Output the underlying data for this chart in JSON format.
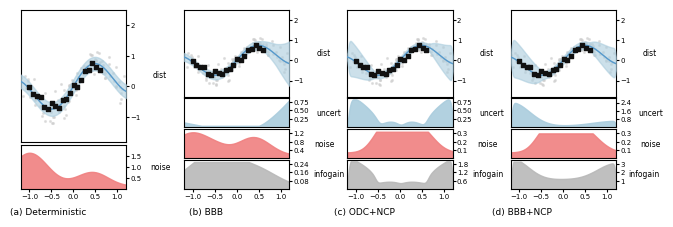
{
  "titles": [
    "(a) Deterministic",
    "(b) BBB",
    "(c) ODC+NCP",
    "(d) BBB+NCP"
  ],
  "xlim": [
    -1.2,
    1.2
  ],
  "dist_ylim": [
    -1.8,
    2.5
  ],
  "dist_yticks": [
    -1,
    0,
    1,
    2
  ],
  "blue_fill": "#aaccdd",
  "red_fill": "#f08080",
  "gray_fill": "#b8b8b8",
  "line_color": "#5599cc",
  "scatter_dark": "#111111",
  "scatter_light": "#cccccc",
  "ylabel_dist": "dist",
  "ylabel_uncert": "uncert",
  "ylabel_noise": "noise",
  "ylabel_infogain": "infogain",
  "uncert_ylim": [
    0,
    0.85
  ],
  "uncert_yticks": [
    0.25,
    0.5,
    0.75
  ],
  "noise_ylim_det": [
    0,
    2.0
  ],
  "noise_yticks_det": [
    0.5,
    1.0,
    1.5
  ],
  "noise_ylim_bbb": [
    0,
    1.4
  ],
  "noise_yticks_bbb": [
    0.4,
    0.8,
    1.2
  ],
  "noise_ylim_odc": [
    0,
    0.35
  ],
  "noise_yticks_odc": [
    0.1,
    0.2,
    0.3
  ],
  "noise_ylim_bbb_ncp": [
    0,
    0.35
  ],
  "noise_yticks_bbb_ncp": [
    0.1,
    0.2,
    0.3
  ],
  "infogain_ylim_bbb": [
    0,
    0.28
  ],
  "infogain_yticks_bbb": [
    0.08,
    0.16,
    0.24
  ],
  "infogain_ylim_odc": [
    0,
    2.1
  ],
  "infogain_yticks_odc": [
    0.6,
    1.2,
    1.8
  ],
  "infogain_ylim_bbb_ncp": [
    0,
    3.5
  ],
  "infogain_yticks_bbb_ncp": [
    1.0,
    2.0,
    3.0
  ],
  "uncert_ylim_bbb_ncp": [
    0,
    2.8
  ],
  "uncert_yticks_bbb_ncp": [
    0.8,
    1.6,
    2.4
  ]
}
